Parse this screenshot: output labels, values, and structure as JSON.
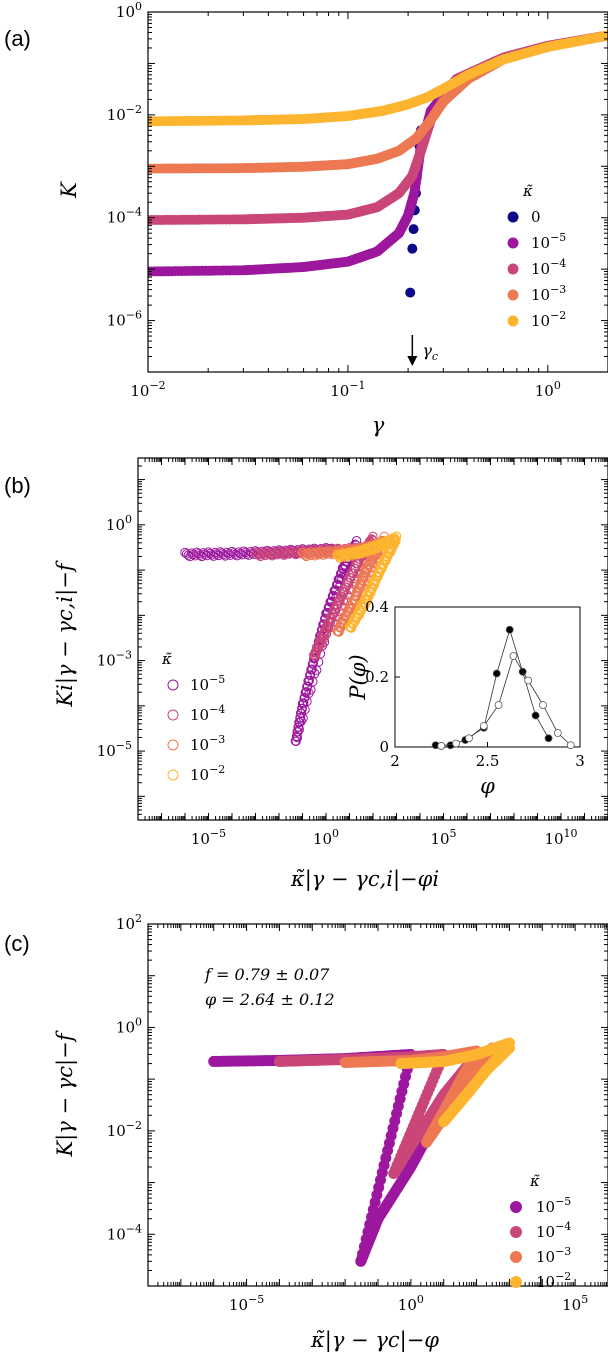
{
  "panels": [
    {
      "label": "(a)",
      "xlabel": "γ",
      "ylabel": "K"
    },
    {
      "label": "(b)",
      "xlabel": "κ̃|γ − γc,i|−φi",
      "ylabel": "Ki|γ − γc,i|−f"
    },
    {
      "label": "(c)",
      "xlabel": "κ̃|γ − γc|−φ",
      "ylabel": "K|γ − γc|−f"
    }
  ],
  "colors": {
    "k0": "#0d0887",
    "k1e-5": "#9c179e",
    "k1e-4": "#cb4678",
    "k1e-3": "#ed7953",
    "k1e-2": "#fdb42f"
  },
  "chart_data": [
    {
      "type": "scatter",
      "panel": "a",
      "xscale": "log",
      "yscale": "log",
      "xlim": [
        0.01,
        2.0
      ],
      "ylim": [
        1e-07,
        1.0
      ],
      "xticks": [
        "10−2",
        "10−1",
        "100"
      ],
      "yticks": [
        "10−6",
        "10−4",
        "10−2",
        "100"
      ],
      "legend_title": "κ̃",
      "legend_position": "right",
      "annotation": "γc",
      "annotation_x": 0.21,
      "series": [
        {
          "name": "0",
          "color": "#0d0887",
          "x": [
            0.205,
            0.21,
            0.213,
            0.216,
            0.219,
            0.221,
            0.224,
            0.228,
            0.232
          ],
          "y": [
            3.5e-06,
            2.5e-05,
            6e-05,
            0.00014,
            0.0003,
            0.0006,
            0.0012,
            0.0025,
            0.005
          ]
        },
        {
          "name": "10−5",
          "color": "#9c179e",
          "x": [
            0.01,
            0.03,
            0.06,
            0.1,
            0.14,
            0.18,
            0.2,
            0.215,
            0.23,
            0.26,
            0.35,
            0.6,
            1.0,
            2.0
          ],
          "y": [
            9e-06,
            9.5e-06,
            1.1e-05,
            1.4e-05,
            2.2e-05,
            5e-05,
            0.00011,
            0.0003,
            0.002,
            0.012,
            0.05,
            0.13,
            0.22,
            0.35
          ]
        },
        {
          "name": "10−4",
          "color": "#cb4678",
          "x": [
            0.01,
            0.03,
            0.06,
            0.1,
            0.14,
            0.18,
            0.21,
            0.23,
            0.26,
            0.35,
            0.6,
            1.0,
            2.0
          ],
          "y": [
            9e-05,
            9.3e-05,
            0.0001,
            0.000115,
            0.00016,
            0.0003,
            0.00065,
            0.0018,
            0.008,
            0.05,
            0.13,
            0.22,
            0.35
          ]
        },
        {
          "name": "10−3",
          "color": "#ed7953",
          "x": [
            0.01,
            0.03,
            0.06,
            0.1,
            0.14,
            0.18,
            0.22,
            0.26,
            0.3,
            0.4,
            0.6,
            1.0,
            2.0
          ],
          "y": [
            0.0009,
            0.00092,
            0.00098,
            0.0011,
            0.0014,
            0.002,
            0.0035,
            0.008,
            0.018,
            0.05,
            0.12,
            0.21,
            0.35
          ]
        },
        {
          "name": "10−2",
          "color": "#fdb42f",
          "x": [
            0.01,
            0.03,
            0.06,
            0.1,
            0.15,
            0.2,
            0.25,
            0.3,
            0.4,
            0.6,
            1.0,
            2.0
          ],
          "y": [
            0.0075,
            0.0078,
            0.0083,
            0.0095,
            0.012,
            0.016,
            0.022,
            0.032,
            0.06,
            0.12,
            0.21,
            0.35
          ]
        }
      ]
    },
    {
      "type": "scatter",
      "panel": "b",
      "xscale": "log",
      "yscale": "log",
      "xlim": [
        1e-08,
        1000000000000.0
      ],
      "ylim": [
        3e-07,
        30
      ],
      "xticks": [
        "10−5",
        "100",
        "105",
        "1010"
      ],
      "yticks": [
        "10−5",
        "10−3",
        "100"
      ],
      "legend_title": "κ̃",
      "legend_position": "lower left",
      "markers": "open circles",
      "series": [
        {
          "name": "10−5",
          "color": "#9c179e",
          "x": [
            1e-06,
            0.0001,
            0.01,
            1.0,
            10,
            0.05,
            0.1,
            0.3,
            1.0,
            5,
            20
          ],
          "y": [
            0.22,
            0.23,
            0.25,
            0.28,
            0.25,
            1.5e-05,
            0.0001,
            0.001,
            0.01,
            0.1,
            0.4
          ]
        },
        {
          "name": "10−4",
          "color": "#cb4678",
          "x": [
            0.001,
            0.1,
            10,
            100,
            0.3,
            1.0,
            5,
            30,
            100
          ],
          "y": [
            0.22,
            0.25,
            0.28,
            0.3,
            0.0012,
            0.005,
            0.03,
            0.2,
            0.5
          ]
        },
        {
          "name": "10−3",
          "color": "#ed7953",
          "x": [
            0.1,
            3,
            30,
            300,
            3,
            15,
            50,
            300
          ],
          "y": [
            0.22,
            0.25,
            0.28,
            0.4,
            0.004,
            0.02,
            0.1,
            0.5
          ]
        },
        {
          "name": "10−2",
          "color": "#fdb42f",
          "x": [
            3,
            30,
            200,
            1000,
            10,
            50,
            200,
            1000
          ],
          "y": [
            0.2,
            0.25,
            0.35,
            0.5,
            0.005,
            0.02,
            0.1,
            0.5
          ]
        }
      ],
      "inset": {
        "type": "line",
        "xlabel": "φ",
        "ylabel": "P(φ)",
        "xlim": [
          2.0,
          3.0
        ],
        "ylim": [
          0,
          0.4
        ],
        "xticks": [
          "2",
          "2.5",
          "3"
        ],
        "yticks": [
          "0",
          "0.2",
          "0.4"
        ],
        "series": [
          {
            "fill": "filled",
            "x": [
              2.22,
              2.3,
              2.38,
              2.48,
              2.55,
              2.62,
              2.69,
              2.76,
              2.83
            ],
            "y": [
              0.005,
              0.005,
              0.02,
              0.055,
              0.21,
              0.335,
              0.215,
              0.09,
              0.025
            ]
          },
          {
            "fill": "open",
            "x": [
              2.25,
              2.33,
              2.4,
              2.48,
              2.56,
              2.64,
              2.72,
              2.8,
              2.88,
              2.95
            ],
            "y": [
              0.003,
              0.01,
              0.025,
              0.06,
              0.12,
              0.26,
              0.19,
              0.12,
              0.04,
              0.005
            ]
          }
        ]
      }
    },
    {
      "type": "scatter",
      "panel": "c",
      "xscale": "log",
      "yscale": "log",
      "xlim": [
        1e-08,
        1000000.0
      ],
      "ylim": [
        1e-05,
        100
      ],
      "xticks": [
        "10−5",
        "100",
        "105"
      ],
      "yticks": [
        "10−4",
        "10−2",
        "100",
        "102"
      ],
      "legend_title": "κ̃",
      "legend_position": "right",
      "annotations": [
        "f = 0.79 ± 0.07",
        "φ = 2.64 ± 0.12"
      ],
      "series": [
        {
          "name": "10−5",
          "color": "#9c179e",
          "x": [
            1e-06,
            0.0001,
            0.01,
            1.0,
            0.03,
            0.1,
            1.0,
            10,
            100
          ],
          "y": [
            0.22,
            0.23,
            0.25,
            0.3,
            3e-05,
            0.0002,
            0.002,
            0.03,
            0.3
          ]
        },
        {
          "name": "10−4",
          "color": "#cb4678",
          "x": [
            0.0001,
            0.01,
            1.0,
            10,
            0.3,
            1.0,
            10,
            100
          ],
          "y": [
            0.22,
            0.24,
            0.27,
            0.3,
            0.0015,
            0.005,
            0.05,
            0.3
          ]
        },
        {
          "name": "10−3",
          "color": "#ed7953",
          "x": [
            0.01,
            1.0,
            10,
            100,
            3,
            30,
            100,
            300
          ],
          "y": [
            0.21,
            0.23,
            0.27,
            0.35,
            0.006,
            0.05,
            0.15,
            0.4
          ]
        },
        {
          "name": "10−2",
          "color": "#fdb42f",
          "x": [
            0.5,
            10,
            100,
            1000,
            10,
            50,
            200,
            1000
          ],
          "y": [
            0.2,
            0.22,
            0.3,
            0.5,
            0.015,
            0.05,
            0.15,
            0.4
          ]
        }
      ]
    }
  ]
}
